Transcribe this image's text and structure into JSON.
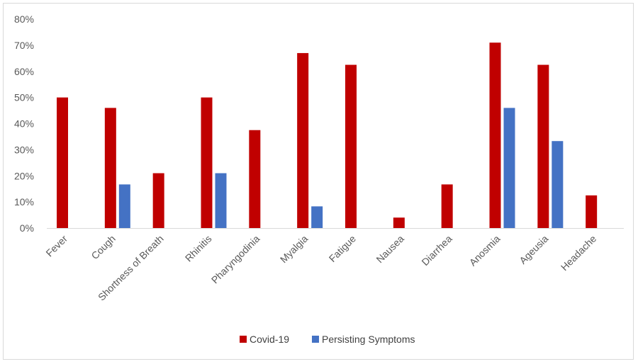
{
  "chart_data": {
    "type": "bar",
    "title": "",
    "xlabel": "",
    "ylabel": "",
    "ylim": [
      0,
      80
    ],
    "y_ticks": [
      "0%",
      "10%",
      "20%",
      "30%",
      "40%",
      "50%",
      "60%",
      "70%",
      "80%"
    ],
    "grid": false,
    "legend_position": "bottom",
    "categories": [
      "Fever",
      "Cough",
      "Shortness of Breath",
      "Rhinitis",
      "Pharyngodinia",
      "Myalgia",
      "Fatigue",
      "Nausea",
      "Diarrhea",
      "Anosmia",
      "Ageusia",
      "Headache"
    ],
    "series": [
      {
        "name": "Covid-19",
        "color": "#c00000",
        "values": [
          50,
          46,
          21,
          50,
          37.5,
          67,
          62.5,
          4,
          16.7,
          71,
          62.5,
          12.5
        ]
      },
      {
        "name": "Persisting Symptoms",
        "color": "#4472c4",
        "values": [
          0,
          16.7,
          0,
          21,
          0,
          8.3,
          0,
          0,
          0,
          46,
          33.3,
          0
        ]
      }
    ]
  }
}
